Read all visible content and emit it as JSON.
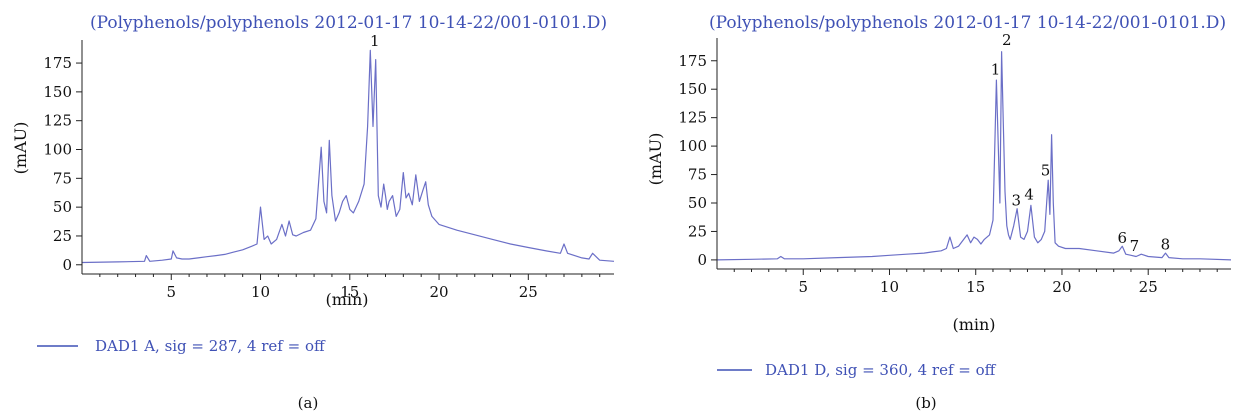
{
  "chart_data": [
    {
      "type": "line",
      "title": "(Polyphenols/polyphenols 2012-01-17 10-14-22/001-0101.D)",
      "xlabel": "(min)",
      "ylabel": "(mAU)",
      "xlim": [
        0,
        29.8
      ],
      "ylim": [
        -8,
        195
      ],
      "xticks": [
        5,
        10,
        15,
        20,
        25
      ],
      "yticks": [
        0,
        25,
        50,
        75,
        100,
        125,
        150,
        175
      ],
      "series": [
        {
          "name": "DAD1 A, sig = 287, 4 ref = off",
          "color": "#6b6fc7",
          "x": [
            0,
            2,
            3.5,
            3.6,
            3.8,
            4.5,
            5.0,
            5.1,
            5.3,
            5.6,
            6.0,
            6.5,
            7.0,
            7.5,
            8.0,
            8.5,
            9.0,
            9.5,
            9.8,
            10.0,
            10.2,
            10.4,
            10.6,
            10.9,
            11.2,
            11.4,
            11.6,
            11.8,
            12.0,
            12.4,
            12.8,
            13.1,
            13.4,
            13.55,
            13.7,
            13.85,
            14.0,
            14.2,
            14.4,
            14.6,
            14.8,
            15.0,
            15.2,
            15.5,
            15.8,
            16.0,
            16.15,
            16.3,
            16.45,
            16.6,
            16.75,
            16.9,
            17.0,
            17.1,
            17.2,
            17.4,
            17.6,
            17.8,
            18.0,
            18.15,
            18.3,
            18.5,
            18.7,
            18.9,
            19.1,
            19.25,
            19.4,
            19.6,
            20.0,
            21.0,
            22.0,
            23.0,
            24.0,
            25.0,
            26.0,
            26.8,
            27.0,
            27.2,
            28.0,
            28.4,
            28.6,
            29.0,
            29.8
          ],
          "values": [
            2,
            2.5,
            3,
            8,
            3,
            4,
            5,
            12,
            6,
            5,
            5,
            6,
            7,
            8,
            9,
            11,
            13,
            16,
            18,
            50,
            22,
            25,
            18,
            22,
            35,
            25,
            38,
            26,
            25,
            28,
            30,
            40,
            102,
            55,
            45,
            108,
            60,
            38,
            45,
            55,
            60,
            48,
            45,
            55,
            70,
            120,
            186,
            120,
            178,
            60,
            50,
            70,
            60,
            48,
            55,
            60,
            42,
            48,
            80,
            58,
            62,
            52,
            78,
            55,
            65,
            72,
            52,
            42,
            35,
            30,
            26,
            22,
            18,
            15,
            12,
            10,
            18,
            10,
            6,
            5,
            10,
            4,
            3
          ]
        }
      ],
      "peak_labels": [
        {
          "label": "1",
          "x": 16.4,
          "y": 190
        }
      ],
      "legend": "bottom-left",
      "grid": false,
      "caption": "(a)"
    },
    {
      "type": "line",
      "title": "(Polyphenols/polyphenols 2012-01-17 10-14-22/001-0101.D)",
      "xlabel": "(min)",
      "ylabel": "(mAU)",
      "xlim": [
        0,
        29.8
      ],
      "ylim": [
        -8,
        195
      ],
      "xticks": [
        5,
        10,
        15,
        20,
        25
      ],
      "yticks": [
        0,
        25,
        50,
        75,
        100,
        125,
        150,
        175
      ],
      "series": [
        {
          "name": "DAD1 D, sig = 360, 4 ref = off",
          "color": "#6b6fc7",
          "x": [
            0,
            2,
            3.5,
            3.7,
            3.9,
            5.0,
            7.0,
            9.0,
            10.0,
            11.0,
            12.0,
            12.5,
            13.0,
            13.3,
            13.5,
            13.7,
            14.0,
            14.5,
            14.7,
            14.9,
            15.1,
            15.3,
            15.5,
            15.8,
            16.0,
            16.2,
            16.4,
            16.5,
            16.6,
            16.7,
            16.8,
            16.9,
            17.0,
            17.2,
            17.4,
            17.6,
            17.8,
            18.0,
            18.2,
            18.4,
            18.6,
            18.8,
            19.0,
            19.2,
            19.3,
            19.4,
            19.5,
            19.6,
            19.8,
            20.2,
            21.0,
            22.0,
            23.0,
            23.3,
            23.5,
            23.7,
            24.0,
            24.3,
            24.6,
            25.0,
            25.8,
            26.0,
            26.2,
            27.0,
            28.0,
            29.8
          ],
          "values": [
            0,
            0.5,
            1,
            3,
            1,
            1,
            2,
            3,
            4,
            5,
            6,
            7,
            8,
            10,
            20,
            10,
            12,
            22,
            15,
            20,
            18,
            14,
            18,
            22,
            35,
            158,
            50,
            183,
            120,
            60,
            30,
            22,
            18,
            30,
            45,
            20,
            18,
            25,
            48,
            20,
            15,
            18,
            25,
            70,
            40,
            110,
            50,
            15,
            12,
            10,
            10,
            8,
            6,
            8,
            12,
            5,
            4,
            3,
            5,
            3,
            2,
            6,
            2,
            1,
            1,
            0
          ]
        }
      ],
      "peak_labels": [
        {
          "label": "1",
          "x": 16.15,
          "y": 163
        },
        {
          "label": "2",
          "x": 16.8,
          "y": 189
        },
        {
          "label": "3",
          "x": 17.35,
          "y": 48
        },
        {
          "label": "4",
          "x": 18.1,
          "y": 53
        },
        {
          "label": "5",
          "x": 19.05,
          "y": 74
        },
        {
          "label": "6",
          "x": 23.5,
          "y": 15
        },
        {
          "label": "7",
          "x": 24.2,
          "y": 8
        },
        {
          "label": "8",
          "x": 26.0,
          "y": 9
        }
      ],
      "legend": "bottom-left",
      "grid": false,
      "caption": "(b)"
    }
  ]
}
